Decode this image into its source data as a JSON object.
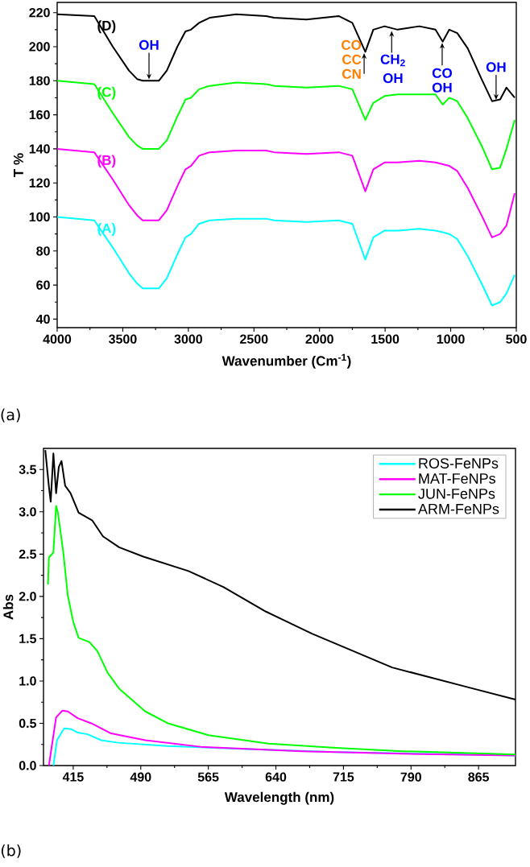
{
  "chart_data": [
    {
      "type": "line",
      "xlabel": "Wavenumber (Cm$^{-1}$)",
      "ylabel": "T %",
      "legend": "left",
      "x": [
        4000,
        3717,
        3576,
        3453,
        3391,
        3348,
        3225,
        3164,
        3084,
        3022,
        2980,
        2918,
        2838,
        2635,
        2407,
        2346,
        2100,
        1854,
        1750,
        1651,
        1590,
        1504,
        1405,
        1239,
        1116,
        1061,
        1011,
        950,
        870,
        765,
        685,
        623,
        575,
        512
      ],
      "series": [
        {
          "name": "(A)",
          "color": "#00ffff",
          "values": [
            100,
            98,
            82,
            67,
            61,
            58,
            58,
            64,
            78,
            88,
            90,
            96,
            98,
            99,
            99,
            98,
            97,
            98,
            96,
            75,
            88,
            92,
            92,
            93,
            92,
            91,
            90,
            87,
            77,
            61,
            48,
            50,
            55,
            66
          ]
        },
        {
          "name": "(B)",
          "color": "#ff00ff",
          "values": [
            140,
            138,
            122,
            107,
            101,
            98,
            98,
            104,
            118,
            128,
            130,
            136,
            138,
            139,
            139,
            138,
            137,
            138,
            136,
            115,
            128,
            132,
            132,
            133,
            132,
            131,
            130,
            127,
            117,
            101,
            88,
            90,
            95,
            114
          ]
        },
        {
          "name": "(C)",
          "color": "#00ff00",
          "values": [
            180,
            178,
            161,
            147,
            142,
            140,
            140,
            145,
            159,
            169,
            170,
            175,
            177,
            179,
            178,
            177,
            176,
            177,
            175,
            157,
            167,
            171,
            172,
            172,
            172,
            166,
            170,
            168,
            158,
            142,
            128,
            129,
            140,
            157
          ]
        },
        {
          "name": "(D)",
          "color": "#000000",
          "values": [
            219,
            218,
            200,
            186,
            181,
            180,
            180,
            186,
            200,
            209,
            210,
            214,
            217,
            219,
            218,
            217,
            216,
            218,
            214,
            197,
            210,
            212,
            210,
            212,
            210,
            203,
            210,
            208,
            199,
            181,
            168,
            169,
            176,
            170
          ]
        }
      ],
      "xlim": [
        4000,
        500
      ],
      "ylim": [
        35,
        226
      ],
      "xticks": [
        4000,
        3500,
        3000,
        2500,
        2000,
        1500,
        1000,
        500
      ],
      "yticks": [
        40,
        60,
        80,
        100,
        120,
        140,
        160,
        180,
        200,
        220
      ],
      "annotations": [
        {
          "text": "OH",
          "x": 3300,
          "y": 180
        },
        "CO",
        "CC",
        {
          "text": "CN",
          "x": 1660,
          "y": 197
        },
        {
          "text": "CH$_{2}$",
          "x": 1450,
          "y": 210
        },
        "OH",
        {
          "text": "CO",
          "x": 1065,
          "y": 203
        },
        "OH",
        {
          "text": "OH",
          "x": 654,
          "y": 168
        },
        "(a)"
      ]
    },
    {
      "type": "line",
      "xlabel": "Wavelength (nm)",
      "ylabel": "Abs",
      "legend": "top right",
      "series": [
        {
          "name": "ROS-FeNPs",
          "color": "#00ffff",
          "x": [
            393,
            397,
            405,
            413,
            420,
            431,
            446,
            465,
            520,
            595,
            707,
            906
          ],
          "values": [
            0,
            0.3,
            0.44,
            0.43,
            0.39,
            0.37,
            0.3,
            0.27,
            0.23,
            0.2,
            0.16,
            0.12
          ]
        },
        {
          "name": "MAT-FeNPs",
          "color": "#ff00ff",
          "x": [
            388,
            396,
            403,
            409,
            420,
            435,
            457,
            495,
            558,
            669,
            781,
            906
          ],
          "values": [
            0,
            0.57,
            0.65,
            0.64,
            0.56,
            0.5,
            0.38,
            0.3,
            0.22,
            0.17,
            0.14,
            0.12
          ]
        },
        {
          "name": "JUN-FeNPs",
          "color": "#00ff00",
          "x": [
            387,
            388,
            393,
            396,
            398,
            404,
            409,
            415,
            421,
            433,
            442,
            453,
            466,
            495,
            520,
            565,
            632,
            707,
            781,
            906
          ],
          "values": [
            2.14,
            2.46,
            2.52,
            3.07,
            2.99,
            2.52,
            2.01,
            1.7,
            1.51,
            1.46,
            1.35,
            1.1,
            0.91,
            0.64,
            0.5,
            0.36,
            0.26,
            0.21,
            0.17,
            0.13
          ]
        },
        {
          "name": "ARM-FeNPs",
          "color": "#000000",
          "x": [
            384,
            388,
            390,
            393,
            396,
            399,
            402,
            406,
            412,
            421,
            436,
            448,
            466,
            493,
            543,
            582,
            629,
            680,
            769,
            859,
            906
          ],
          "values": [
            3.73,
            3.3,
            3.12,
            3.69,
            3.22,
            3.53,
            3.6,
            3.31,
            3.22,
            2.99,
            2.9,
            2.71,
            2.58,
            2.47,
            2.3,
            2.11,
            1.82,
            1.56,
            1.16,
            0.91,
            0.78
          ]
        }
      ],
      "xlim": [
        382,
        906
      ],
      "ylim": [
        0,
        3.75
      ],
      "xticks": [
        415,
        490,
        565,
        640,
        715,
        790,
        865
      ],
      "yticks": [
        {
          "value": 0,
          "label": "0.0"
        },
        0.5,
        {
          "value": 1,
          "label": "1.0"
        },
        1.5,
        {
          "value": 2,
          "label": "2.0"
        },
        2.5,
        {
          "value": 3,
          "label": "3.0"
        },
        3.5
      ],
      "annotations": [
        "(b)"
      ]
    }
  ]
}
